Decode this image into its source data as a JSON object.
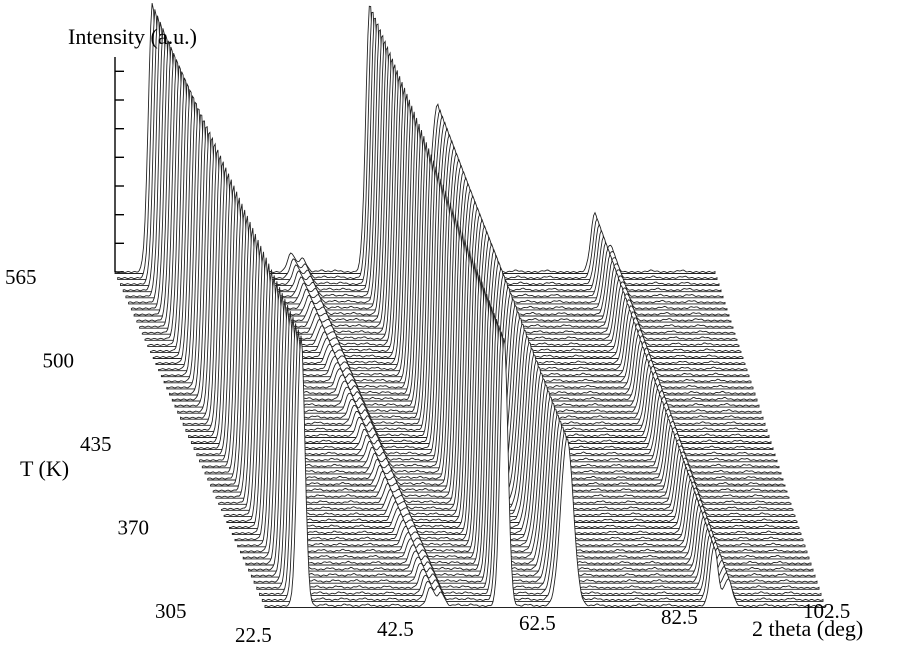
{
  "chart_data": {
    "type": "waterfall",
    "zlabel": "Intensity (a.u.)",
    "ylabel": "T (K)",
    "xlabel": "2 theta (deg)",
    "x_ticks": [
      "22.5",
      "42.5",
      "62.5",
      "82.5",
      "102.5"
    ],
    "y_ticks": [
      "305",
      "370",
      "435",
      "500",
      "565"
    ],
    "xlim": [
      22.5,
      102.5
    ],
    "ylim": [
      305,
      565
    ],
    "n_traces": 56,
    "peaks": [
      {
        "center": 27.5,
        "width": 0.55,
        "height": 1.0
      },
      {
        "center": 46.0,
        "width": 0.5,
        "height": 0.07
      },
      {
        "center": 47.5,
        "width": 0.5,
        "height": 0.05
      },
      {
        "center": 56.5,
        "width": 0.55,
        "height": 1.0
      },
      {
        "center": 65.5,
        "width": 0.9,
        "height": 0.62
      },
      {
        "center": 86.5,
        "width": 0.55,
        "height": 0.22
      },
      {
        "center": 88.5,
        "width": 0.6,
        "height": 0.1
      }
    ],
    "background_ripples": [
      31,
      34,
      37,
      41,
      50,
      52,
      60,
      70,
      76,
      80,
      94,
      98
    ]
  }
}
